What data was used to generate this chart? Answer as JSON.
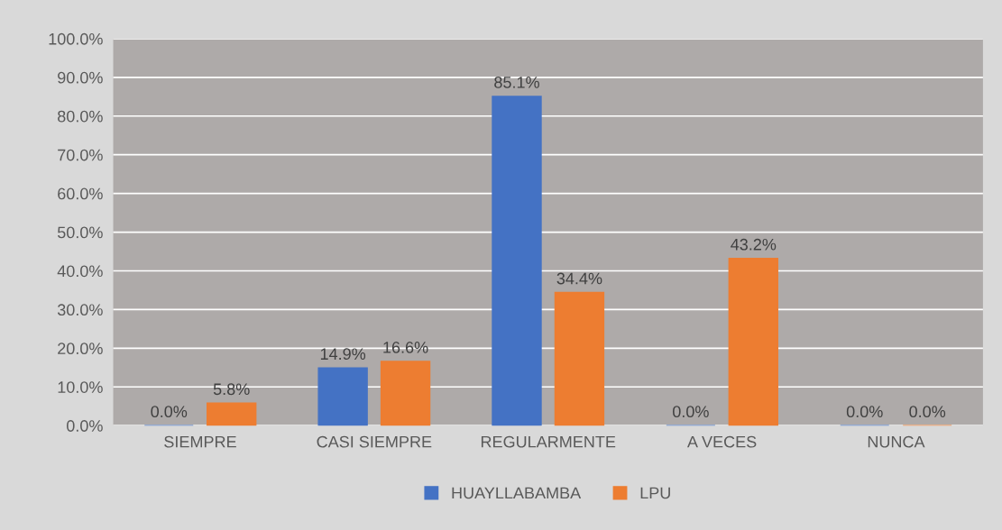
{
  "chart_data": {
    "type": "bar",
    "categories": [
      "SIEMPRE",
      "CASI SIEMPRE",
      "REGULARMENTE",
      "A VECES",
      "NUNCA"
    ],
    "series": [
      {
        "name": "HUAYLLABAMBA",
        "color": "#4472c4",
        "values": [
          0.0,
          14.9,
          85.1,
          0.0,
          0.0
        ],
        "value_labels": [
          "0.0%",
          "14.9%",
          "85.1%",
          "0.0%",
          "0.0%"
        ]
      },
      {
        "name": "LPU",
        "color": "#ed7d31",
        "values": [
          5.8,
          16.6,
          34.4,
          43.2,
          0.0
        ],
        "value_labels": [
          "5.8%",
          "16.6%",
          "34.4%",
          "43.2%",
          "0.0%"
        ]
      }
    ],
    "ylim": [
      0,
      100
    ],
    "yticks": [
      {
        "value": 0,
        "label": "0.0%"
      },
      {
        "value": 10,
        "label": "10.0%"
      },
      {
        "value": 20,
        "label": "20.0%"
      },
      {
        "value": 30,
        "label": "30.0%"
      },
      {
        "value": 40,
        "label": "40.0%"
      },
      {
        "value": 50,
        "label": "50.0%"
      },
      {
        "value": 60,
        "label": "60.0%"
      },
      {
        "value": 70,
        "label": "70.0%"
      },
      {
        "value": 80,
        "label": "80.0%"
      },
      {
        "value": 90,
        "label": "90.0%"
      },
      {
        "value": 100,
        "label": "100.0%"
      }
    ],
    "grid": "y",
    "legend": "bottom"
  }
}
